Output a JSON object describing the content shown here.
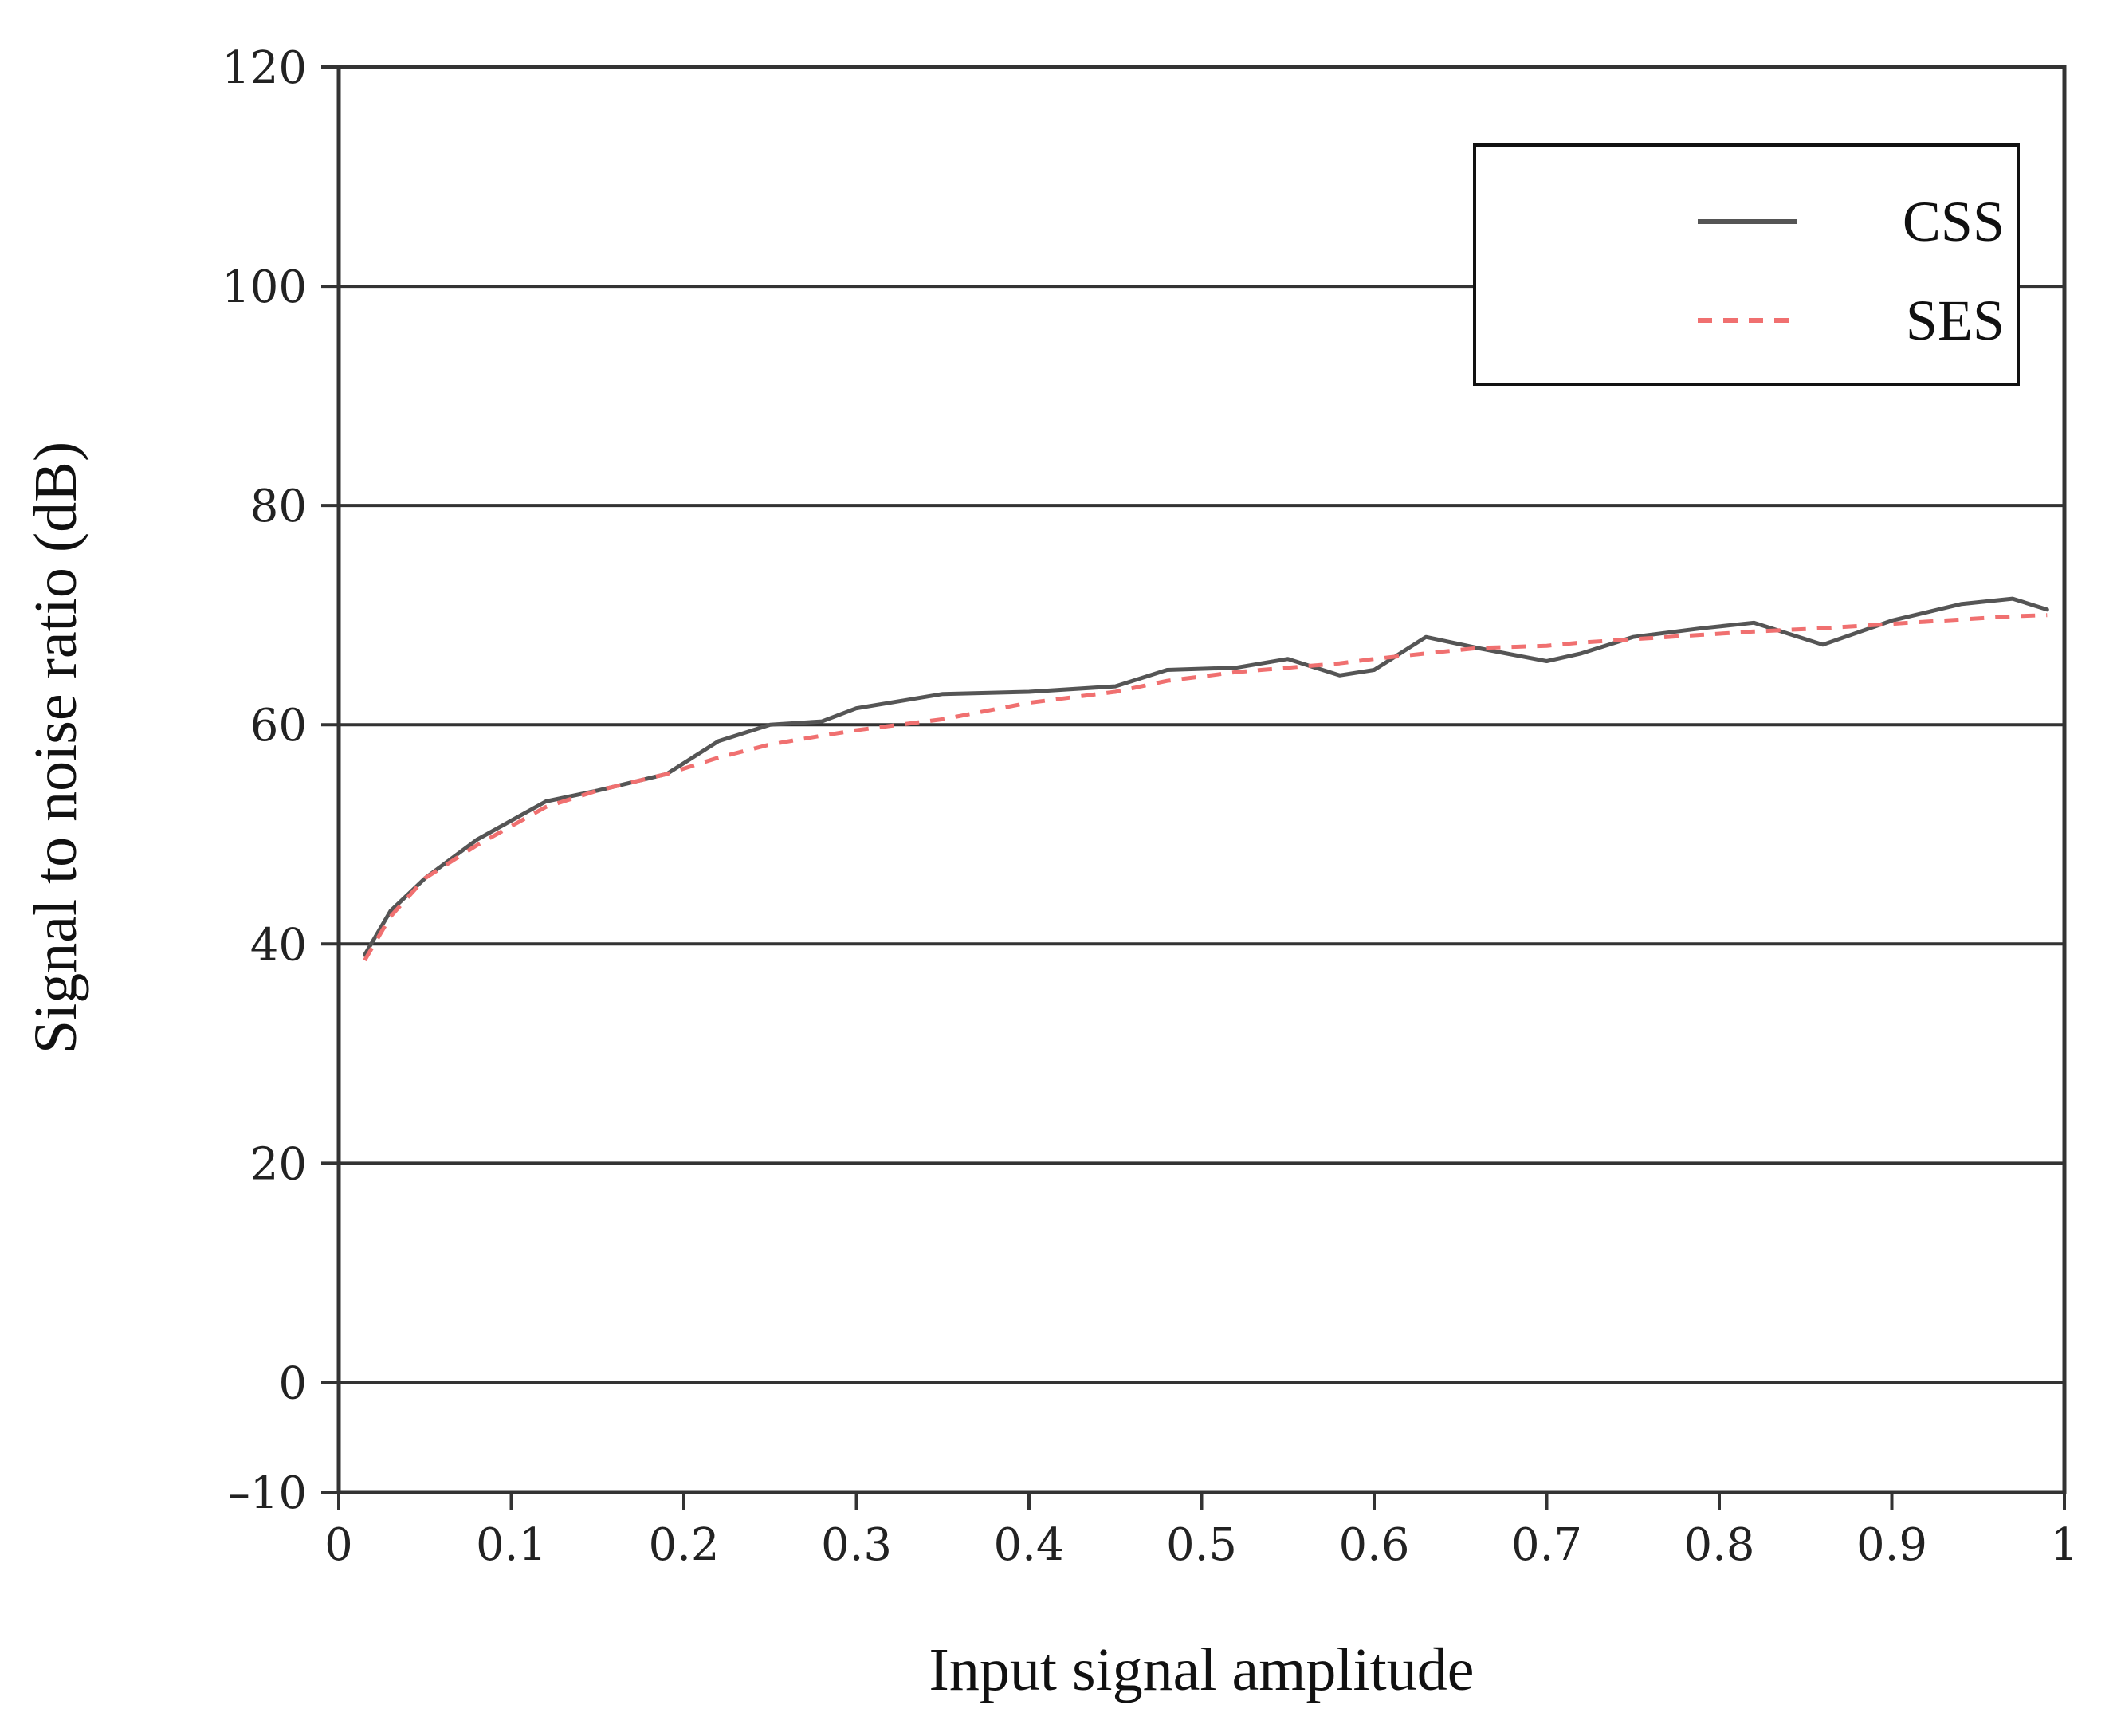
{
  "chart_data": {
    "type": "line",
    "xlabel": "Input signal amplitude",
    "ylabel": "Signal to noise ratio (dB)",
    "xlim": [
      0,
      1
    ],
    "ylim": [
      -10,
      120
    ],
    "x_ticks": [
      0,
      0.1,
      0.2,
      0.3,
      0.4,
      0.5,
      0.6,
      0.7,
      0.8,
      0.9,
      1
    ],
    "x_tick_labels": [
      "0",
      "0.1",
      "0.2",
      "0.3",
      "0.4",
      "0.5",
      "0.6",
      "0.7",
      "0.8",
      "0.9",
      "1"
    ],
    "y_ticks": [
      -10,
      0,
      20,
      40,
      60,
      80,
      100,
      120
    ],
    "y_tick_labels": [
      "–10",
      "0",
      "20",
      "40",
      "60",
      "80",
      "100",
      "120"
    ],
    "grid": "horizontal",
    "legend_position": "top-right",
    "series": [
      {
        "name": "CSS",
        "color": "#555555",
        "style": "solid",
        "x": [
          0.015,
          0.03,
          0.05,
          0.08,
          0.12,
          0.15,
          0.19,
          0.22,
          0.25,
          0.28,
          0.3,
          0.35,
          0.4,
          0.45,
          0.48,
          0.52,
          0.55,
          0.58,
          0.6,
          0.63,
          0.66,
          0.7,
          0.72,
          0.75,
          0.79,
          0.82,
          0.86,
          0.9,
          0.94,
          0.97,
          0.99
        ],
        "y": [
          39,
          43,
          46,
          49.5,
          53,
          54,
          55.5,
          58.5,
          60,
          60.3,
          61.5,
          62.8,
          63,
          63.5,
          65,
          65.2,
          66,
          64.5,
          65,
          68,
          67,
          65.8,
          66.5,
          68,
          68.8,
          69.3,
          67.3,
          69.5,
          71,
          71.5,
          70.5
        ]
      },
      {
        "name": "SES",
        "color": "#f07070",
        "style": "dashed",
        "x": [
          0.015,
          0.03,
          0.05,
          0.08,
          0.12,
          0.15,
          0.19,
          0.22,
          0.25,
          0.28,
          0.3,
          0.35,
          0.4,
          0.45,
          0.48,
          0.52,
          0.55,
          0.58,
          0.6,
          0.63,
          0.66,
          0.7,
          0.72,
          0.75,
          0.79,
          0.82,
          0.86,
          0.9,
          0.94,
          0.97,
          0.99
        ],
        "y": [
          38.5,
          42.5,
          46,
          49,
          52.5,
          54,
          55.5,
          57,
          58.2,
          59,
          59.5,
          60.5,
          62,
          63,
          64,
          64.8,
          65.2,
          65.6,
          66,
          66.5,
          67,
          67.2,
          67.5,
          67.8,
          68.2,
          68.5,
          68.8,
          69.2,
          69.6,
          69.9,
          70
        ]
      }
    ]
  }
}
